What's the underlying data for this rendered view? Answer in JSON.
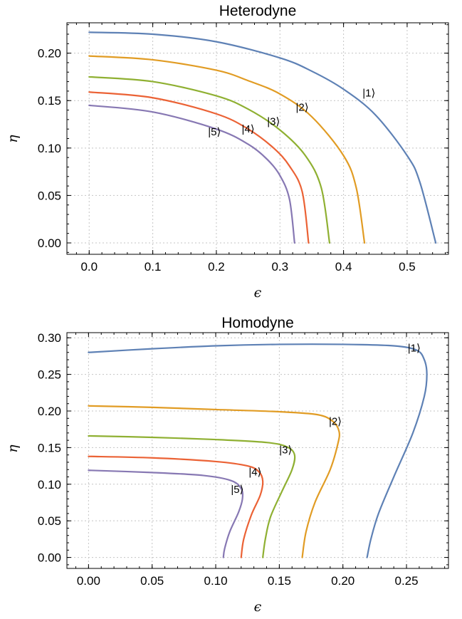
{
  "chart_data": [
    {
      "type": "line",
      "title": "Heterodyne",
      "xlabel": "ϵ",
      "ylabel": "η",
      "xlim": [
        -0.035,
        0.565
      ],
      "ylim": [
        -0.012,
        0.232
      ],
      "grid": true,
      "xticks": [
        0.0,
        0.1,
        0.2,
        0.3,
        0.4,
        0.5
      ],
      "xtick_labels": [
        "0.0",
        "0.1",
        "0.2",
        "0.3",
        "0.4",
        "0.5"
      ],
      "yticks": [
        0.0,
        0.05,
        0.1,
        0.15,
        0.2
      ],
      "ytick_labels": [
        "0.00",
        "0.05",
        "0.10",
        "0.15",
        "0.20"
      ],
      "series": [
        {
          "name": "|1⟩",
          "color": "#5e81b5",
          "x": [
            0.0,
            0.1,
            0.2,
            0.3,
            0.35,
            0.4,
            0.45,
            0.5,
            0.52,
            0.545
          ],
          "y": [
            0.222,
            0.22,
            0.212,
            0.195,
            0.181,
            0.162,
            0.135,
            0.092,
            0.064,
            0.0
          ],
          "label_at": [
            0.44,
            0.158
          ]
        },
        {
          "name": "|2⟩",
          "color": "#e19c24",
          "x": [
            0.0,
            0.1,
            0.2,
            0.25,
            0.3,
            0.35,
            0.4,
            0.42,
            0.433
          ],
          "y": [
            0.197,
            0.193,
            0.182,
            0.171,
            0.157,
            0.133,
            0.092,
            0.058,
            0.0
          ],
          "label_at": [
            0.335,
            0.143
          ]
        },
        {
          "name": "|3⟩",
          "color": "#8fb032",
          "x": [
            0.0,
            0.1,
            0.2,
            0.25,
            0.3,
            0.34,
            0.365,
            0.378
          ],
          "y": [
            0.175,
            0.17,
            0.155,
            0.141,
            0.119,
            0.092,
            0.058,
            0.0
          ],
          "label_at": [
            0.29,
            0.128
          ]
        },
        {
          "name": "|4⟩",
          "color": "#eb6235",
          "x": [
            0.0,
            0.1,
            0.2,
            0.25,
            0.29,
            0.315,
            0.335,
            0.345
          ],
          "y": [
            0.159,
            0.153,
            0.136,
            0.12,
            0.1,
            0.081,
            0.054,
            0.0
          ],
          "label_at": [
            0.25,
            0.12
          ]
        },
        {
          "name": "|5⟩",
          "color": "#8778b3",
          "x": [
            0.0,
            0.1,
            0.2,
            0.25,
            0.28,
            0.3,
            0.315,
            0.323
          ],
          "y": [
            0.145,
            0.138,
            0.12,
            0.104,
            0.088,
            0.071,
            0.046,
            0.0
          ],
          "label_at": [
            0.197,
            0.117
          ]
        }
      ]
    },
    {
      "type": "line",
      "title": "Homodyne",
      "xlabel": "ϵ",
      "ylabel": "η",
      "xlim": [
        -0.017,
        0.283
      ],
      "ylim": [
        -0.015,
        0.307
      ],
      "grid": true,
      "xticks": [
        0.0,
        0.05,
        0.1,
        0.15,
        0.2,
        0.25
      ],
      "xtick_labels": [
        "0.00",
        "0.05",
        "0.10",
        "0.15",
        "0.20",
        "0.25"
      ],
      "yticks": [
        0.0,
        0.05,
        0.1,
        0.15,
        0.2,
        0.25,
        0.3
      ],
      "ytick_labels": [
        "0.00",
        "0.05",
        "0.10",
        "0.15",
        "0.20",
        "0.25",
        "0.30"
      ],
      "series": [
        {
          "name": "|1⟩",
          "color": "#5e81b5",
          "x": [
            0.0,
            0.05,
            0.1,
            0.15,
            0.2,
            0.24,
            0.258,
            0.264,
            0.266,
            0.264,
            0.255,
            0.24,
            0.228,
            0.222,
            0.219
          ],
          "y": [
            0.28,
            0.285,
            0.289,
            0.291,
            0.291,
            0.289,
            0.283,
            0.27,
            0.25,
            0.22,
            0.17,
            0.11,
            0.06,
            0.025,
            0.0
          ],
          "label_at": [
            0.256,
            0.286
          ]
        },
        {
          "name": "|2⟩",
          "color": "#e19c24",
          "x": [
            0.0,
            0.05,
            0.1,
            0.15,
            0.18,
            0.192,
            0.197,
            0.196,
            0.19,
            0.178,
            0.171,
            0.168
          ],
          "y": [
            0.207,
            0.205,
            0.202,
            0.199,
            0.195,
            0.186,
            0.172,
            0.155,
            0.12,
            0.075,
            0.035,
            0.0
          ],
          "label_at": [
            0.194,
            0.186
          ]
        },
        {
          "name": "|3⟩",
          "color": "#8fb032",
          "x": [
            0.0,
            0.05,
            0.1,
            0.14,
            0.156,
            0.162,
            0.16,
            0.152,
            0.143,
            0.139,
            0.137
          ],
          "y": [
            0.166,
            0.164,
            0.161,
            0.157,
            0.151,
            0.14,
            0.12,
            0.09,
            0.055,
            0.025,
            0.0
          ],
          "label_at": [
            0.155,
            0.147
          ]
        },
        {
          "name": "|4⟩",
          "color": "#eb6235",
          "x": [
            0.0,
            0.05,
            0.1,
            0.125,
            0.134,
            0.137,
            0.135,
            0.128,
            0.122,
            0.12
          ],
          "y": [
            0.138,
            0.136,
            0.131,
            0.125,
            0.117,
            0.104,
            0.085,
            0.058,
            0.025,
            0.0
          ],
          "label_at": [
            0.131,
            0.117
          ]
        },
        {
          "name": "|5⟩",
          "color": "#8778b3",
          "x": [
            0.0,
            0.05,
            0.09,
            0.112,
            0.12,
            0.121,
            0.118,
            0.111,
            0.107,
            0.106
          ],
          "y": [
            0.119,
            0.116,
            0.112,
            0.105,
            0.094,
            0.08,
            0.062,
            0.035,
            0.012,
            0.0
          ],
          "label_at": [
            0.117,
            0.093
          ]
        }
      ]
    }
  ]
}
